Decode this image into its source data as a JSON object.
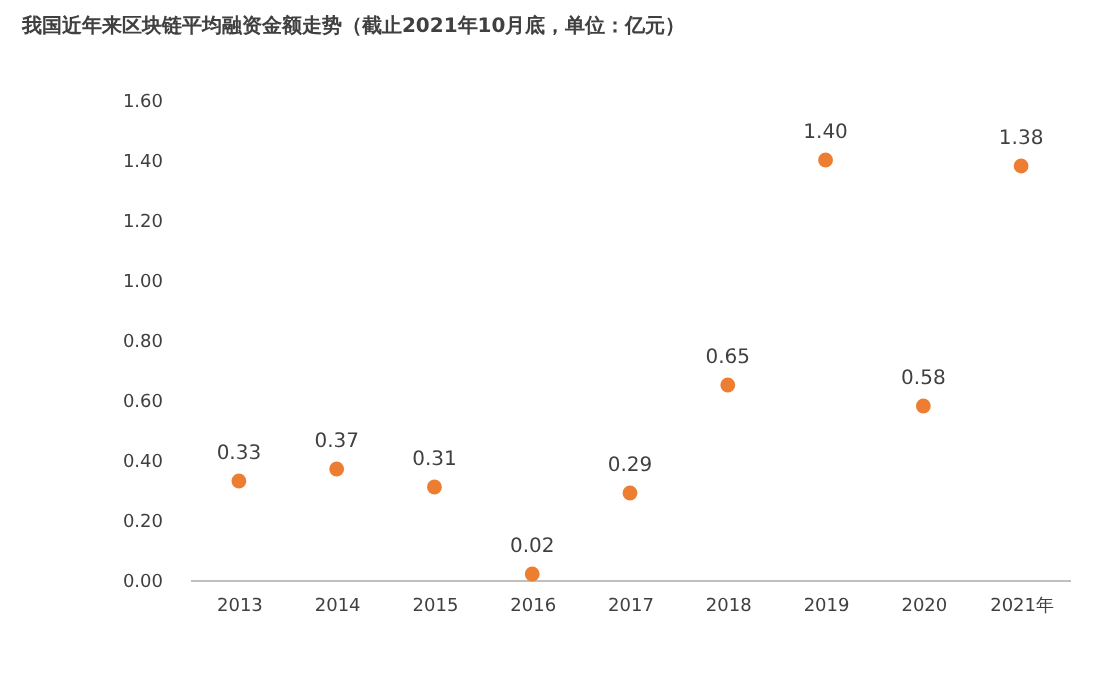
{
  "chart_data": {
    "type": "scatter",
    "title": "我国近年来区块链平均融资金额走势（截止2021年10月底，单位：亿元）",
    "categories": [
      "2013",
      "2014",
      "2015",
      "2016",
      "2017",
      "2018",
      "2019",
      "2020",
      "2021年"
    ],
    "series": [
      {
        "color": "#ed7d31",
        "values": [
          0.33,
          0.37,
          0.31,
          0.02,
          0.29,
          0.65,
          1.4,
          0.58,
          1.38
        ]
      }
    ],
    "value_labels": [
      "0.33",
      "0.37",
      "0.31",
      "0.02",
      "0.29",
      "0.65",
      "1.40",
      "0.58",
      "1.38"
    ],
    "ylim": [
      0,
      1.6
    ],
    "yticks": [
      {
        "value": 0,
        "label": "0.00"
      },
      {
        "value": 0.2,
        "label": "0.20"
      },
      {
        "value": 0.4,
        "label": "0.40"
      },
      {
        "value": 0.6,
        "label": "0.60"
      },
      {
        "value": 0.8,
        "label": "0.80"
      },
      {
        "value": 1.0,
        "label": "1.00"
      },
      {
        "value": 1.2,
        "label": "1.20"
      },
      {
        "value": 1.4,
        "label": "1.40"
      },
      {
        "value": 1.6,
        "label": "1.60"
      }
    ],
    "marker": "circle",
    "grid": false,
    "legend": false
  }
}
